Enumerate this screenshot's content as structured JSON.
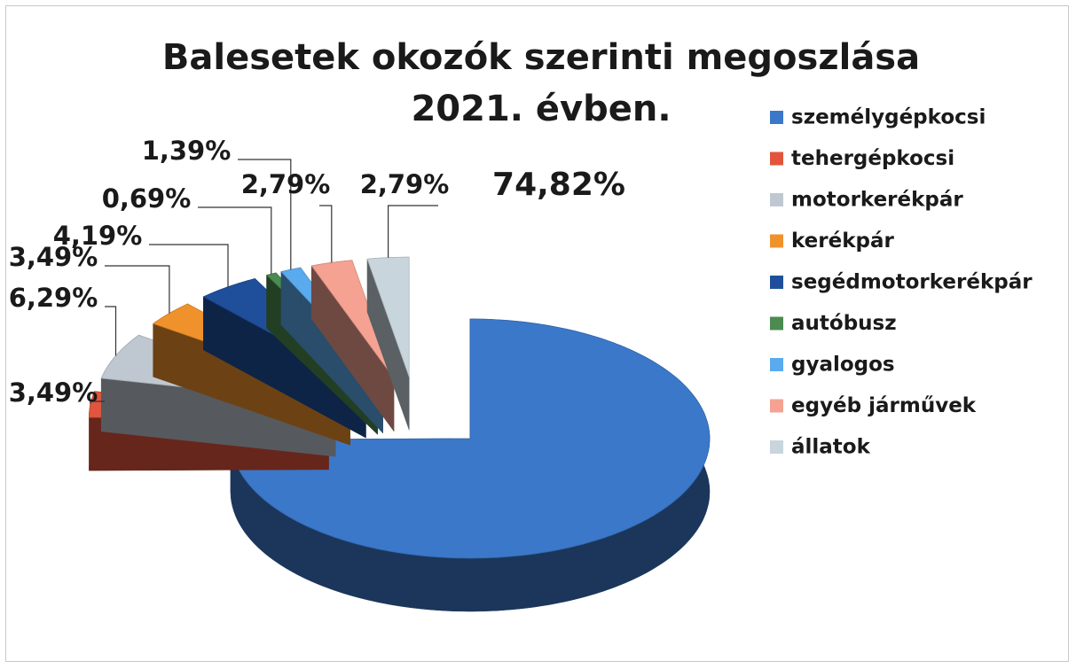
{
  "chart_data": {
    "type": "pie",
    "title": "Balesetek okozók szerinti megoszlása 2021. évben.",
    "categories": [
      "személygépkocsi",
      "tehergépkocsi",
      "motorkerékpár",
      "kerékpár",
      "segédmotorkerékpár",
      "autóbusz",
      "gyalogos",
      "egyéb járművek",
      "állatok"
    ],
    "values": [
      74.82,
      3.49,
      6.29,
      3.49,
      4.19,
      0.69,
      1.39,
      2.79,
      2.79
    ],
    "value_labels": [
      "74,82%",
      "3,49%",
      "6,29%",
      "3,49%",
      "4,19%",
      "0,69%",
      "1,39%",
      "2,79%",
      "2,79%"
    ],
    "colors": [
      "#3b78c9",
      "#e2553c",
      "#bfc8d0",
      "#f0922c",
      "#1f4f9b",
      "#4b8b50",
      "#5aaaee",
      "#f5a293",
      "#c9d5dd"
    ],
    "legend": "right"
  }
}
